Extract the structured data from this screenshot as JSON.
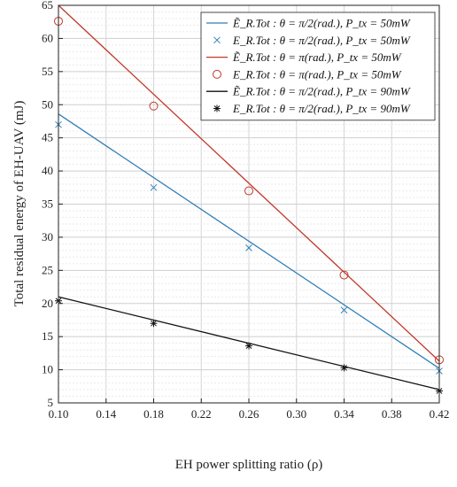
{
  "chart_data": {
    "type": "line",
    "title": "",
    "xlabel": "EH power splitting ratio (ρ)",
    "ylabel": "Total residual energy of EH-UAV (mJ)",
    "xlim": [
      0.1,
      0.42
    ],
    "ylim": [
      5,
      65
    ],
    "xticks": [
      "0.10",
      "0.14",
      "0.18",
      "0.22",
      "0.26",
      "0.30",
      "0.34",
      "0.38",
      "0.42"
    ],
    "yticks": [
      "5",
      "10",
      "15",
      "20",
      "25",
      "30",
      "35",
      "40",
      "45",
      "50",
      "55",
      "60",
      "65"
    ],
    "grid": true,
    "legend_position": "top-right",
    "series": [
      {
        "name": "Ẽ_R.Tot : θ = π/2(rad.), P_tx = 50mW",
        "style": "line",
        "color": "#2f7fb8",
        "x": [
          0.1,
          0.42
        ],
        "y": [
          48.6,
          10.2
        ]
      },
      {
        "name": "E_R.Tot : θ = π/2(rad.), P_tx = 50mW",
        "style": "marker-x",
        "color": "#2f7fb8",
        "x": [
          0.1,
          0.18,
          0.26,
          0.34,
          0.42
        ],
        "y": [
          47.0,
          37.5,
          28.4,
          19.0,
          9.8
        ]
      },
      {
        "name": "Ẽ_R.Tot : θ = π(rad.),   P_tx = 50mW",
        "style": "line",
        "color": "#c0392b",
        "x": [
          0.1,
          0.42
        ],
        "y": [
          65.0,
          11.3
        ]
      },
      {
        "name": "E_R.Tot : θ = π(rad.),   P_tx = 50mW",
        "style": "marker-circle",
        "color": "#c0392b",
        "x": [
          0.1,
          0.18,
          0.26,
          0.34,
          0.42
        ],
        "y": [
          62.6,
          49.8,
          37.0,
          24.3,
          11.5
        ]
      },
      {
        "name": "Ẽ_R.Tot : θ = π/2(rad.), P_tx = 90mW",
        "style": "line",
        "color": "#111111",
        "x": [
          0.1,
          0.42
        ],
        "y": [
          21.0,
          7.0
        ]
      },
      {
        "name": "E_R.Tot : θ = π/2(rad.), P_tx = 90mW",
        "style": "marker-star",
        "color": "#111111",
        "x": [
          0.1,
          0.18,
          0.26,
          0.34,
          0.42
        ],
        "y": [
          20.4,
          17.0,
          13.6,
          10.3,
          6.8
        ]
      }
    ]
  }
}
